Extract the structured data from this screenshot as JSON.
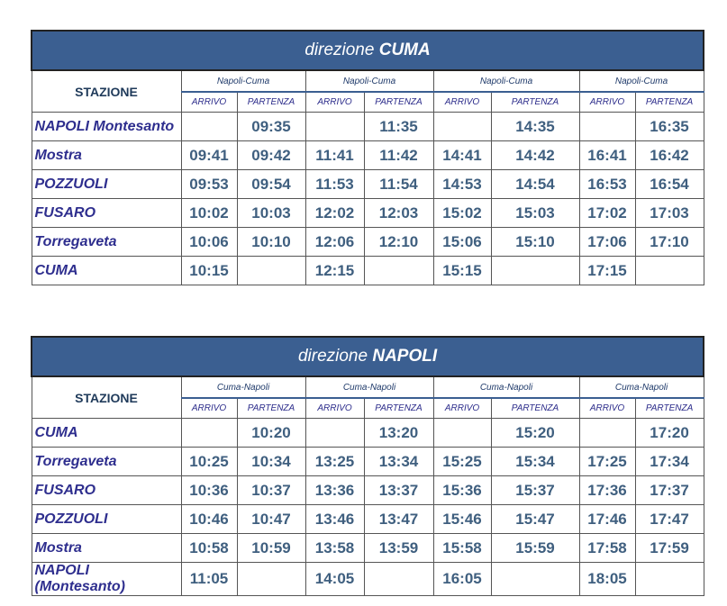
{
  "tables": [
    {
      "title_prefix": "direzione",
      "title_dest": "CUMA",
      "station_header": "STAZIONE",
      "route": "Napoli-Cuma",
      "arr": "ARRIVO",
      "dep": "PARTENZA",
      "rows": [
        {
          "station": "NAPOLI Montesanto",
          "times": [
            "",
            "09:35",
            "",
            "11:35",
            "",
            "14:35",
            "",
            "16:35"
          ]
        },
        {
          "station": "Mostra",
          "times": [
            "09:41",
            "09:42",
            "11:41",
            "11:42",
            "14:41",
            "14:42",
            "16:41",
            "16:42"
          ]
        },
        {
          "station": "POZZUOLI",
          "times": [
            "09:53",
            "09:54",
            "11:53",
            "11:54",
            "14:53",
            "14:54",
            "16:53",
            "16:54"
          ]
        },
        {
          "station": "FUSARO",
          "times": [
            "10:02",
            "10:03",
            "12:02",
            "12:03",
            "15:02",
            "15:03",
            "17:02",
            "17:03"
          ]
        },
        {
          "station": "Torregaveta",
          "times": [
            "10:06",
            "10:10",
            "12:06",
            "12:10",
            "15:06",
            "15:10",
            "17:06",
            "17:10"
          ]
        },
        {
          "station": "CUMA",
          "times": [
            "10:15",
            "",
            "12:15",
            "",
            "15:15",
            "",
            "17:15",
            ""
          ]
        }
      ]
    },
    {
      "title_prefix": "direzione",
      "title_dest": "NAPOLI",
      "station_header": "STAZIONE",
      "route": "Cuma-Napoli",
      "arr": "ARRIVO",
      "dep": "PARTENZA",
      "rows": [
        {
          "station": "CUMA",
          "times": [
            "",
            "10:20",
            "",
            "13:20",
            "",
            "15:20",
            "",
            "17:20"
          ]
        },
        {
          "station": "Torregaveta",
          "times": [
            "10:25",
            "10:34",
            "13:25",
            "13:34",
            "15:25",
            "15:34",
            "17:25",
            "17:34"
          ]
        },
        {
          "station": "FUSARO",
          "times": [
            "10:36",
            "10:37",
            "13:36",
            "13:37",
            "15:36",
            "15:37",
            "17:36",
            "17:37"
          ]
        },
        {
          "station": "POZZUOLI",
          "times": [
            "10:46",
            "10:47",
            "13:46",
            "13:47",
            "15:46",
            "15:47",
            "17:46",
            "17:47"
          ]
        },
        {
          "station": "Mostra",
          "times": [
            "10:58",
            "10:59",
            "13:58",
            "13:59",
            "15:58",
            "15:59",
            "17:58",
            "17:59"
          ]
        },
        {
          "station": "NAPOLI (Montesanto)",
          "times": [
            "11:05",
            "",
            "14:05",
            "",
            "16:05",
            "",
            "18:05",
            ""
          ]
        }
      ]
    }
  ]
}
